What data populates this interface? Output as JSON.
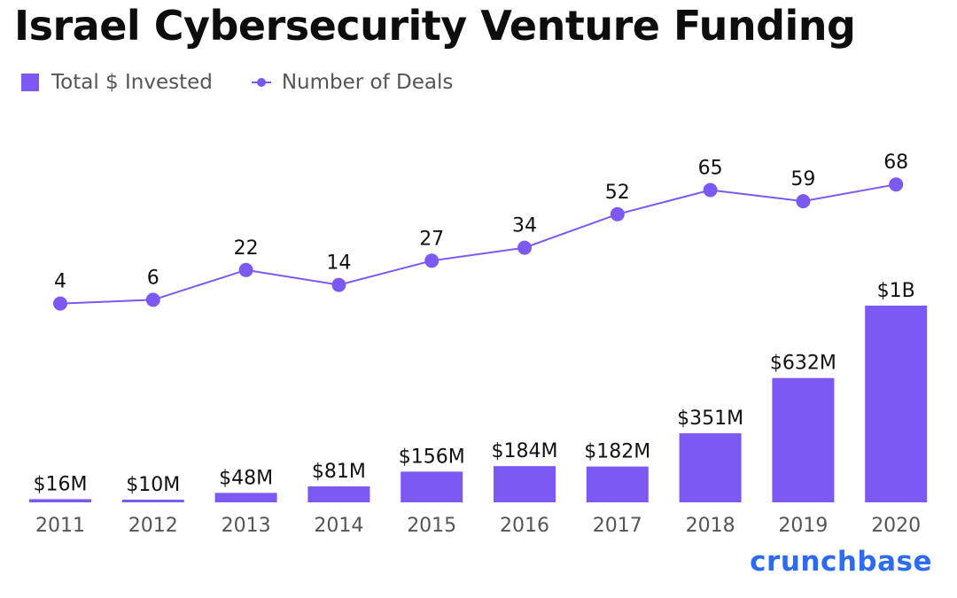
{
  "title": "Israel Cybersecurity Venture Funding",
  "legend": {
    "bars": "Total $ Invested",
    "line": "Number of Deals"
  },
  "brand": "crunchbase",
  "colors": {
    "accent": "#7b59f2",
    "brand": "#2d6cf0",
    "tick": "#555555"
  },
  "chart_data": {
    "type": "bar",
    "title": "Israel Cybersecurity Venture Funding",
    "categories": [
      "2011",
      "2012",
      "2013",
      "2014",
      "2015",
      "2016",
      "2017",
      "2018",
      "2019",
      "2020"
    ],
    "series": [
      {
        "name": "Total $ Invested",
        "type": "bar",
        "values": [
          16,
          10,
          48,
          81,
          156,
          184,
          182,
          351,
          632,
          1000
        ],
        "labels": [
          "$16M",
          "$10M",
          "$48M",
          "$81M",
          "$156M",
          "$184M",
          "$182M",
          "$351M",
          "$632M",
          "$1B"
        ]
      },
      {
        "name": "Number of Deals",
        "type": "line",
        "values": [
          4,
          6,
          22,
          14,
          27,
          34,
          52,
          65,
          59,
          68
        ]
      }
    ],
    "legend_position": "top-left",
    "grid": false
  }
}
